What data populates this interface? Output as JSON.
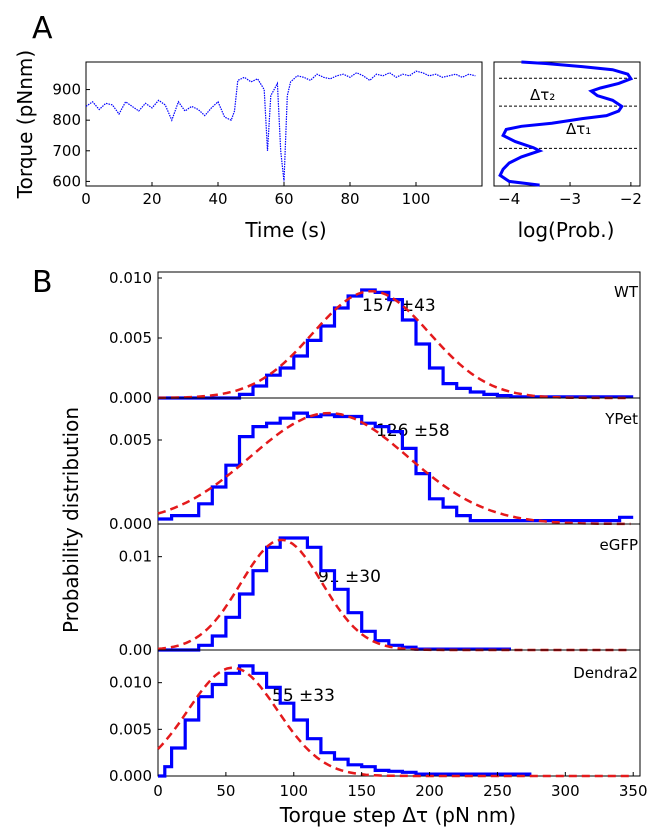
{
  "colors": {
    "trace": "#0000ff",
    "fit": "#e41a1c",
    "axis": "#000000",
    "dashed_line": "#000000"
  },
  "chart_data": [
    {
      "panel": "A-left",
      "panel_label": "A",
      "type": "line",
      "xlabel": "Time (s)",
      "ylabel": "Torque (pNnm)",
      "xlim": [
        0,
        120
      ],
      "ylim": [
        585,
        990
      ],
      "xticks": [
        0,
        20,
        40,
        60,
        80,
        100
      ],
      "yticks": [
        600,
        700,
        800,
        900
      ],
      "series": [
        {
          "x": [
            0,
            2,
            4,
            6,
            8,
            10,
            12,
            14,
            16,
            18,
            20,
            22,
            24,
            26,
            28,
            30,
            32,
            34,
            36,
            38,
            40,
            42,
            44,
            45,
            46,
            48,
            50,
            52,
            54,
            55,
            56,
            58,
            59,
            60,
            61,
            62,
            64,
            66,
            68,
            70,
            72,
            74,
            76,
            78,
            80,
            82,
            84,
            86,
            88,
            90,
            92,
            94,
            96,
            98,
            100,
            102,
            104,
            106,
            108,
            110,
            112,
            114,
            116,
            118
          ],
          "y": [
            845,
            860,
            835,
            855,
            850,
            820,
            860,
            845,
            830,
            855,
            840,
            865,
            850,
            800,
            860,
            830,
            845,
            835,
            815,
            840,
            860,
            810,
            800,
            830,
            930,
            940,
            925,
            935,
            900,
            700,
            880,
            920,
            700,
            600,
            880,
            925,
            945,
            940,
            930,
            950,
            940,
            935,
            945,
            950,
            940,
            955,
            945,
            930,
            950,
            945,
            955,
            940,
            950,
            945,
            960,
            955,
            945,
            950,
            940,
            945,
            950,
            940,
            950,
            945
          ]
        }
      ]
    },
    {
      "panel": "A-right",
      "type": "line",
      "xlabel": "log(Prob.)",
      "xlim": [
        -4.25,
        -1.85
      ],
      "ylim": [
        585,
        990
      ],
      "xticks": [
        -4,
        -3,
        -2
      ],
      "tick_labels": [
        "−4",
        "−3",
        "−2"
      ],
      "series": [
        {
          "x": [
            -3.5,
            -4.0,
            -4.15,
            -4.1,
            -4.0,
            -3.8,
            -3.5,
            -3.6,
            -3.9,
            -4.1,
            -4.05,
            -3.8,
            -3.3,
            -2.8,
            -2.4,
            -2.2,
            -2.15,
            -2.3,
            -2.55,
            -2.65,
            -2.5,
            -2.2,
            -2.0,
            -2.05,
            -2.3,
            -2.8,
            -3.4,
            -3.8
          ],
          "y": [
            588,
            600,
            620,
            640,
            660,
            680,
            700,
            710,
            730,
            750,
            770,
            780,
            790,
            805,
            815,
            830,
            845,
            865,
            880,
            895,
            905,
            920,
            935,
            950,
            965,
            975,
            985,
            990
          ]
        }
      ],
      "dashed_levels": [
        937,
        846,
        708
      ],
      "annotations": [
        {
          "label": "Δτ₂",
          "sub": "2",
          "x": -3.05,
          "y": 880
        },
        {
          "label": "Δτ₁",
          "sub": "1",
          "x": -2.8,
          "y": 770
        }
      ]
    },
    {
      "panel": "B",
      "panel_label": "B",
      "type": "line",
      "xlabel": "Torque step Δτ (pN nm)",
      "ylabel": "Probability distribution",
      "xlim": [
        0,
        355
      ],
      "xticks": [
        0,
        50,
        100,
        150,
        200,
        250,
        300,
        350
      ],
      "subplots": [
        {
          "name": "WT",
          "annotation": "157 ±43",
          "ylim": [
            0,
            0.0105
          ],
          "yticks": [
            0.0,
            0.005,
            0.01
          ],
          "tick_labels": [
            "0.000",
            "0.005",
            "0.010"
          ],
          "data_x": [
            0,
            50,
            60,
            70,
            80,
            90,
            100,
            110,
            120,
            130,
            140,
            150,
            160,
            170,
            180,
            190,
            200,
            210,
            220,
            230,
            240,
            250,
            260,
            270,
            280,
            290,
            300,
            310,
            320,
            330,
            340,
            350
          ],
          "data_y": [
            0,
            0,
            0.0003,
            0.001,
            0.0019,
            0.0025,
            0.0035,
            0.0048,
            0.006,
            0.0075,
            0.0085,
            0.009,
            0.0088,
            0.0082,
            0.0065,
            0.0045,
            0.0025,
            0.0012,
            0.0008,
            0.0005,
            0.0003,
            0.0002,
            0.0001,
            0.0001,
            0.0001,
            0.0001,
            0.0001,
            0.0001,
            0.0001,
            0.0001,
            0.0001,
            0.0001
          ],
          "fit_mean": 157,
          "fit_sd": 43,
          "fit_peak": 0.0089
        },
        {
          "name": "YPet",
          "annotation": "126 ±58",
          "ylim": [
            0,
            0.0075
          ],
          "yticks": [
            0.0,
            0.005
          ],
          "tick_labels": [
            "0.000",
            "0.005"
          ],
          "data_x": [
            0,
            10,
            20,
            30,
            40,
            50,
            60,
            70,
            80,
            90,
            100,
            110,
            120,
            130,
            140,
            150,
            160,
            170,
            180,
            190,
            200,
            210,
            220,
            230,
            240,
            250,
            260,
            270,
            280,
            290,
            300,
            310,
            320,
            330,
            340,
            350
          ],
          "data_y": [
            0.0003,
            0.0005,
            0.0005,
            0.0012,
            0.0022,
            0.0035,
            0.0052,
            0.0058,
            0.006,
            0.0063,
            0.0066,
            0.0064,
            0.0065,
            0.0064,
            0.0064,
            0.006,
            0.0058,
            0.0055,
            0.0045,
            0.003,
            0.0015,
            0.001,
            0.0005,
            0.0002,
            0.0002,
            0.0002,
            0.0002,
            0.0002,
            0.0002,
            0.0002,
            0.0002,
            0.0002,
            0.0002,
            0.0002,
            0.0004,
            0.0004
          ],
          "fit_mean": 126,
          "fit_sd": 58,
          "fit_peak": 0.0066
        },
        {
          "name": "eGFP",
          "annotation": "91 ±30",
          "ylim": [
            0,
            0.0135
          ],
          "yticks": [
            0.0,
            0.01
          ],
          "tick_labels": [
            "0.00",
            "0.01"
          ],
          "data_x": [
            0,
            20,
            30,
            40,
            50,
            60,
            70,
            80,
            90,
            100,
            110,
            120,
            130,
            140,
            150,
            160,
            170,
            180,
            190,
            200,
            210,
            220,
            230,
            240,
            250,
            260
          ],
          "data_y": [
            0,
            0,
            0.0005,
            0.0015,
            0.0035,
            0.006,
            0.0085,
            0.011,
            0.012,
            0.012,
            0.011,
            0.0085,
            0.0065,
            0.004,
            0.002,
            0.001,
            0.0005,
            0.0003,
            0.0001,
            0.0001,
            0.0001,
            0.0001,
            0.0001,
            0.0001,
            0.0001,
            0.0001
          ],
          "fit_mean": 91,
          "fit_sd": 30,
          "fit_peak": 0.0118
        },
        {
          "name": "Dendra2",
          "annotation": "55 ±33",
          "ylim": [
            0,
            0.0135
          ],
          "yticks": [
            0.0,
            0.005,
            0.01
          ],
          "tick_labels": [
            "0.000",
            "0.005",
            "0.010"
          ],
          "data_x": [
            0,
            5,
            10,
            20,
            30,
            40,
            50,
            60,
            70,
            80,
            90,
            100,
            110,
            120,
            130,
            140,
            150,
            160,
            170,
            180,
            190,
            200,
            210,
            220,
            230,
            240,
            250,
            260,
            270,
            275
          ],
          "data_y": [
            0,
            0.001,
            0.003,
            0.006,
            0.0085,
            0.0098,
            0.011,
            0.0118,
            0.011,
            0.0095,
            0.0078,
            0.006,
            0.004,
            0.0025,
            0.0018,
            0.0012,
            0.001,
            0.0006,
            0.0005,
            0.0004,
            0.0002,
            0.0002,
            0.0002,
            0.0002,
            0.0002,
            0.0002,
            0.0002,
            0.0002,
            0.0002,
            0.0002
          ],
          "fit_mean": 55,
          "fit_sd": 33,
          "fit_peak": 0.0116
        }
      ]
    }
  ]
}
